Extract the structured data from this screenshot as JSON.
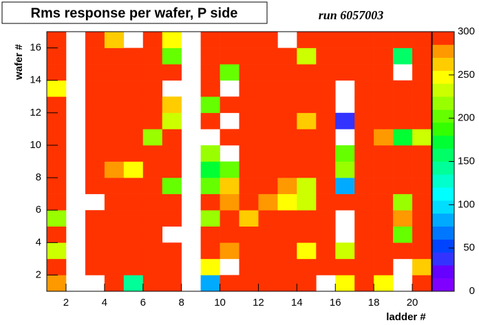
{
  "chart_data": {
    "type": "heatmap",
    "title": "Rms response per wafer, P side",
    "annotation": "run 6057003",
    "x_label": "ladder #",
    "y_label": "wafer #",
    "xlim": [
      1,
      21
    ],
    "ylim": [
      1,
      17
    ],
    "xticks": [
      2,
      4,
      6,
      8,
      10,
      12,
      14,
      16,
      18,
      20
    ],
    "yticks": [
      2,
      4,
      6,
      8,
      10,
      12,
      14,
      16
    ],
    "x": [
      1,
      2,
      3,
      4,
      5,
      6,
      7,
      8,
      9,
      10,
      11,
      12,
      13,
      14,
      15,
      16,
      17,
      18,
      19,
      20
    ],
    "y": [
      1,
      2,
      3,
      4,
      5,
      6,
      7,
      8,
      9,
      10,
      11,
      12,
      13,
      14,
      15,
      16
    ],
    "zlim": [
      0,
      300
    ],
    "zticks": [
      0,
      50,
      100,
      150,
      200,
      250,
      300
    ],
    "palette": [
      "#8000ff",
      "#6600ff",
      "#3333ff",
      "#0044ff",
      "#0077ff",
      "#00aaff",
      "#00ddff",
      "#00ffff",
      "#00ffcc",
      "#00ff99",
      "#00ff66",
      "#00ff33",
      "#33ff00",
      "#66ff00",
      "#99ff00",
      "#ccff00",
      "#ffff00",
      "#ffcc00",
      "#ff9900",
      "#ff3300",
      "#ff0000"
    ],
    "z": [
      [
        275,
        null,
        null,
        295,
        140,
        295,
        295,
        null,
        85,
        295,
        295,
        295,
        295,
        295,
        null,
        250,
        295,
        250,
        null,
        295
      ],
      [
        295,
        null,
        295,
        295,
        295,
        295,
        295,
        null,
        250,
        null,
        295,
        295,
        295,
        295,
        295,
        295,
        295,
        295,
        null,
        255
      ],
      [
        230,
        null,
        295,
        295,
        295,
        295,
        295,
        null,
        295,
        275,
        295,
        295,
        295,
        250,
        295,
        230,
        295,
        295,
        295,
        295
      ],
      [
        295,
        null,
        295,
        295,
        295,
        295,
        null,
        null,
        295,
        295,
        295,
        295,
        295,
        295,
        295,
        null,
        295,
        295,
        205,
        295
      ],
      [
        220,
        null,
        295,
        295,
        295,
        295,
        295,
        null,
        220,
        295,
        260,
        295,
        295,
        295,
        295,
        null,
        295,
        295,
        275,
        295
      ],
      [
        295,
        null,
        null,
        295,
        295,
        295,
        295,
        null,
        295,
        275,
        295,
        275,
        245,
        230,
        295,
        295,
        295,
        295,
        220,
        295
      ],
      [
        295,
        null,
        295,
        295,
        295,
        295,
        205,
        null,
        195,
        260,
        295,
        295,
        275,
        230,
        295,
        80,
        295,
        295,
        295,
        295
      ],
      [
        295,
        null,
        295,
        275,
        250,
        295,
        295,
        null,
        175,
        195,
        295,
        295,
        295,
        295,
        295,
        220,
        295,
        295,
        295,
        295
      ],
      [
        295,
        null,
        295,
        295,
        295,
        295,
        295,
        null,
        220,
        null,
        295,
        295,
        295,
        295,
        295,
        195,
        295,
        295,
        295,
        295
      ],
      [
        295,
        null,
        295,
        295,
        295,
        215,
        295,
        null,
        null,
        295,
        295,
        295,
        295,
        295,
        295,
        null,
        295,
        275,
        170,
        225
      ],
      [
        295,
        null,
        295,
        295,
        295,
        295,
        230,
        null,
        295,
        null,
        295,
        295,
        295,
        260,
        295,
        40,
        295,
        295,
        295,
        295
      ],
      [
        295,
        null,
        295,
        295,
        295,
        295,
        260,
        null,
        195,
        295,
        295,
        295,
        295,
        295,
        295,
        null,
        295,
        295,
        295,
        295
      ],
      [
        250,
        null,
        295,
        295,
        295,
        295,
        null,
        null,
        295,
        null,
        295,
        295,
        295,
        295,
        295,
        null,
        295,
        295,
        295,
        295
      ],
      [
        295,
        null,
        295,
        295,
        295,
        295,
        295,
        null,
        295,
        205,
        295,
        295,
        295,
        295,
        295,
        295,
        295,
        295,
        null,
        295
      ],
      [
        295,
        null,
        295,
        295,
        295,
        295,
        205,
        null,
        295,
        295,
        295,
        295,
        295,
        230,
        295,
        295,
        295,
        295,
        160,
        295
      ],
      [
        295,
        null,
        295,
        260,
        null,
        295,
        245,
        null,
        295,
        295,
        295,
        295,
        null,
        295,
        295,
        295,
        295,
        295,
        295,
        295
      ]
    ]
  }
}
